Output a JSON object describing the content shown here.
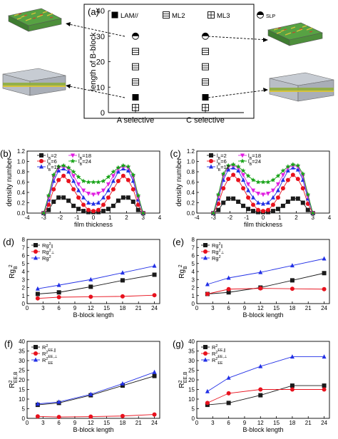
{
  "colors": {
    "black": "#1a1a1a",
    "red": "#e8121e",
    "blue": "#2230e6",
    "magenta": "#e01ee0",
    "green": "#17a317",
    "film_green": "#57a243",
    "film_yellow": "#d7c33a",
    "film_red": "#c4472e",
    "slab_gray": "#b9bec6"
  },
  "panel_a": {
    "label": "(a)",
    "legend": [
      "LAM//",
      "ML2",
      "ML3",
      "SLP"
    ],
    "icons": [
      "filled-square-marker",
      "lined-square-marker",
      "grid-square-marker",
      "half-filled-circle-marker"
    ]
  },
  "chart_data": [
    {
      "id": "a",
      "type": "scatter",
      "ylabel": "length of B-block",
      "categories": [
        "A selective",
        "C selective"
      ],
      "ylim": [
        0,
        40
      ],
      "yticks": [
        0,
        10,
        20,
        30,
        40
      ],
      "series": [
        {
          "name": "LAM//",
          "marker": "filled-square",
          "points": [
            [
              "A selective",
              6
            ],
            [
              "C selective",
              6
            ]
          ]
        },
        {
          "name": "ML2",
          "marker": "lined-square",
          "points": [
            [
              "A selective",
              12
            ],
            [
              "A selective",
              18
            ],
            [
              "A selective",
              24
            ],
            [
              "C selective",
              12
            ],
            [
              "C selective",
              18
            ],
            [
              "C selective",
              24
            ]
          ]
        },
        {
          "name": "ML3",
          "marker": "grid-square",
          "points": [
            [
              "A selective",
              2
            ],
            [
              "C selective",
              2
            ]
          ]
        },
        {
          "name": "SLP",
          "marker": "half-filled-circle",
          "points": [
            [
              "A selective",
              30
            ],
            [
              "C selective",
              30
            ]
          ]
        }
      ]
    },
    {
      "id": "b",
      "type": "line",
      "label": "(b)",
      "xlabel": "film thickness",
      "ylabel": "density number",
      "xlim": [
        -4,
        4
      ],
      "ylim": [
        0,
        1.2
      ],
      "xticks": [
        -4,
        -3,
        -2,
        -1,
        0,
        1,
        2,
        3,
        4
      ],
      "yticks": [
        0,
        0.2,
        0.4,
        0.6,
        0.8,
        1.0,
        1.2
      ],
      "yticklabels": [
        "0.0",
        "0.2",
        "0.4",
        "0.6",
        "0.8",
        "1.0",
        "1.2"
      ],
      "x": [
        -3.0,
        -2.7,
        -2.4,
        -2.1,
        -1.8,
        -1.5,
        -1.2,
        -0.9,
        -0.6,
        -0.3,
        0.0,
        0.3,
        0.6,
        0.9,
        1.2,
        1.5,
        1.8,
        2.1,
        2.4,
        2.7,
        3.0
      ],
      "series": [
        {
          "name": "l_B=2",
          "color": "black",
          "values": [
            0.0,
            0.06,
            0.22,
            0.3,
            0.3,
            0.24,
            0.14,
            0.08,
            0.04,
            0.02,
            0.02,
            0.02,
            0.04,
            0.08,
            0.14,
            0.24,
            0.3,
            0.3,
            0.22,
            0.06,
            0.0
          ]
        },
        {
          "name": "l_B=6",
          "color": "red",
          "values": [
            0.0,
            0.16,
            0.46,
            0.64,
            0.72,
            0.62,
            0.46,
            0.3,
            0.16,
            0.06,
            0.04,
            0.06,
            0.16,
            0.3,
            0.46,
            0.62,
            0.72,
            0.64,
            0.46,
            0.16,
            0.0
          ]
        },
        {
          "name": "l_B=12",
          "color": "blue",
          "values": [
            0.0,
            0.26,
            0.62,
            0.82,
            0.86,
            0.8,
            0.62,
            0.44,
            0.3,
            0.2,
            0.18,
            0.2,
            0.3,
            0.44,
            0.62,
            0.8,
            0.86,
            0.82,
            0.62,
            0.26,
            0.0
          ]
        },
        {
          "name": "l_B=18",
          "color": "magenta",
          "values": [
            0.0,
            0.3,
            0.7,
            0.88,
            0.9,
            0.86,
            0.72,
            0.56,
            0.44,
            0.38,
            0.36,
            0.38,
            0.44,
            0.56,
            0.72,
            0.86,
            0.9,
            0.88,
            0.7,
            0.3,
            0.0
          ]
        },
        {
          "name": "l_B=24",
          "color": "green",
          "values": [
            0.0,
            0.34,
            0.74,
            0.9,
            0.92,
            0.88,
            0.8,
            0.7,
            0.62,
            0.6,
            0.6,
            0.6,
            0.62,
            0.7,
            0.8,
            0.88,
            0.92,
            0.9,
            0.74,
            0.34,
            0.0
          ]
        }
      ],
      "legend": "top"
    },
    {
      "id": "c",
      "type": "line",
      "label": "(c)",
      "xlabel": "film thickness",
      "ylabel": "density number",
      "xlim": [
        -4,
        4
      ],
      "ylim": [
        0,
        1.2
      ],
      "xticks": [
        -4,
        -3,
        -2,
        -1,
        0,
        1,
        2,
        3,
        4
      ],
      "yticks": [
        0,
        0.2,
        0.4,
        0.6,
        0.8,
        1.0,
        1.2
      ],
      "yticklabels": [
        "0.0",
        "0.2",
        "0.4",
        "0.6",
        "0.8",
        "1.0",
        "1.2"
      ],
      "x": [
        -3.0,
        -2.7,
        -2.4,
        -2.1,
        -1.8,
        -1.5,
        -1.2,
        -0.9,
        -0.6,
        -0.3,
        0.0,
        0.3,
        0.6,
        0.9,
        1.2,
        1.5,
        1.8,
        2.1,
        2.4,
        2.7,
        3.0
      ],
      "series": [
        {
          "name": "l_B=2",
          "color": "black",
          "values": [
            0.0,
            0.06,
            0.2,
            0.28,
            0.28,
            0.22,
            0.14,
            0.08,
            0.04,
            0.02,
            0.02,
            0.02,
            0.04,
            0.08,
            0.14,
            0.22,
            0.28,
            0.28,
            0.2,
            0.06,
            0.0
          ]
        },
        {
          "name": "l_B=6",
          "color": "red",
          "values": [
            0.0,
            0.18,
            0.48,
            0.66,
            0.74,
            0.64,
            0.48,
            0.3,
            0.16,
            0.06,
            0.04,
            0.06,
            0.16,
            0.3,
            0.48,
            0.64,
            0.74,
            0.66,
            0.48,
            0.18,
            0.0
          ]
        },
        {
          "name": "l_B=12",
          "color": "blue",
          "values": [
            0.0,
            0.28,
            0.64,
            0.84,
            0.88,
            0.82,
            0.64,
            0.44,
            0.3,
            0.2,
            0.18,
            0.2,
            0.3,
            0.44,
            0.64,
            0.82,
            0.88,
            0.84,
            0.64,
            0.28,
            0.0
          ]
        },
        {
          "name": "l_B=18",
          "color": "magenta",
          "values": [
            0.0,
            0.32,
            0.72,
            0.9,
            0.92,
            0.88,
            0.74,
            0.56,
            0.44,
            0.38,
            0.36,
            0.38,
            0.44,
            0.56,
            0.74,
            0.88,
            0.92,
            0.9,
            0.72,
            0.32,
            0.0
          ]
        },
        {
          "name": "l_B=24",
          "color": "green",
          "values": [
            0.0,
            0.36,
            0.76,
            0.92,
            0.94,
            0.9,
            0.82,
            0.72,
            0.64,
            0.6,
            0.6,
            0.6,
            0.64,
            0.72,
            0.82,
            0.9,
            0.94,
            0.92,
            0.76,
            0.36,
            0.0
          ]
        }
      ],
      "legend": "top"
    },
    {
      "id": "d",
      "type": "line",
      "label": "(d)",
      "xlabel": "B-block length",
      "ylabel": "Rg_B^2",
      "xlim": [
        0,
        25
      ],
      "ylim": [
        0,
        8
      ],
      "xticks": [
        0,
        3,
        6,
        9,
        12,
        15,
        18,
        21,
        24
      ],
      "yticks": [
        0,
        1,
        2,
        3,
        4,
        5,
        6,
        7,
        8
      ],
      "x": [
        2,
        6,
        12,
        18,
        24
      ],
      "series": [
        {
          "name": "Rg^2_∥",
          "color": "black",
          "values": [
            1.2,
            1.4,
            2.1,
            2.9,
            3.6
          ]
        },
        {
          "name": "Rg^2_⊥",
          "color": "red",
          "values": [
            0.65,
            0.8,
            0.85,
            0.9,
            1.05
          ]
        },
        {
          "name": "Rg^2",
          "color": "blue",
          "values": [
            1.85,
            2.3,
            3.0,
            3.85,
            4.7
          ]
        }
      ],
      "legend": "top-left"
    },
    {
      "id": "e",
      "type": "line",
      "label": "(e)",
      "xlabel": "B-block length",
      "ylabel": "Rg_B^2",
      "xlim": [
        0,
        25
      ],
      "ylim": [
        0,
        8
      ],
      "xticks": [
        0,
        3,
        6,
        9,
        12,
        15,
        18,
        21,
        24
      ],
      "yticks": [
        0,
        1,
        2,
        3,
        4,
        5,
        6,
        7,
        8
      ],
      "x": [
        2,
        6,
        12,
        18,
        24
      ],
      "series": [
        {
          "name": "Rg^2_∥",
          "color": "black",
          "values": [
            1.2,
            1.4,
            2.0,
            2.9,
            3.8
          ]
        },
        {
          "name": "Rg^2_⊥",
          "color": "red",
          "values": [
            1.2,
            1.8,
            1.9,
            1.85,
            1.8
          ]
        },
        {
          "name": "Rg^2",
          "color": "blue",
          "values": [
            2.4,
            3.2,
            3.9,
            4.75,
            5.6
          ]
        }
      ],
      "legend": "top-left"
    },
    {
      "id": "f",
      "type": "line",
      "label": "(f)",
      "xlabel": "B-block length",
      "ylabel": "R_EE,B^2",
      "xlim": [
        0,
        25
      ],
      "ylim": [
        0,
        40
      ],
      "xticks": [
        0,
        3,
        6,
        9,
        12,
        15,
        18,
        21,
        24
      ],
      "yticks": [
        0,
        5,
        10,
        15,
        20,
        25,
        30,
        35,
        40
      ],
      "x": [
        2,
        6,
        12,
        18,
        24
      ],
      "series": [
        {
          "name": "R^2_EE,∥",
          "color": "black",
          "values": [
            7.0,
            8.0,
            12.0,
            17.0,
            22.0
          ]
        },
        {
          "name": "R^2_EE,⊥",
          "color": "red",
          "values": [
            1.0,
            0.7,
            0.9,
            1.2,
            2.0
          ]
        },
        {
          "name": "R^2_EE",
          "color": "blue",
          "values": [
            7.5,
            8.5,
            12.5,
            18.0,
            24.0
          ]
        }
      ],
      "legend": "top-left"
    },
    {
      "id": "g",
      "type": "line",
      "label": "(g)",
      "xlabel": "B-block length",
      "ylabel": "R_EE,B^2",
      "xlim": [
        0,
        25
      ],
      "ylim": [
        0,
        40
      ],
      "xticks": [
        0,
        3,
        6,
        9,
        12,
        15,
        18,
        21,
        24
      ],
      "yticks": [
        0,
        5,
        10,
        15,
        20,
        25,
        30,
        35,
        40
      ],
      "x": [
        2,
        6,
        12,
        18,
        24
      ],
      "series": [
        {
          "name": "R^2_EE,∥",
          "color": "black",
          "values": [
            7.0,
            8.0,
            12.0,
            17.0,
            17.0
          ]
        },
        {
          "name": "R^2_EE,⊥",
          "color": "red",
          "values": [
            8.0,
            13.0,
            15.0,
            15.0,
            15.0
          ]
        },
        {
          "name": "R^2_EE",
          "color": "blue",
          "values": [
            14.0,
            21.0,
            27.0,
            32.0,
            32.0
          ]
        }
      ],
      "legend": "top-left"
    }
  ]
}
